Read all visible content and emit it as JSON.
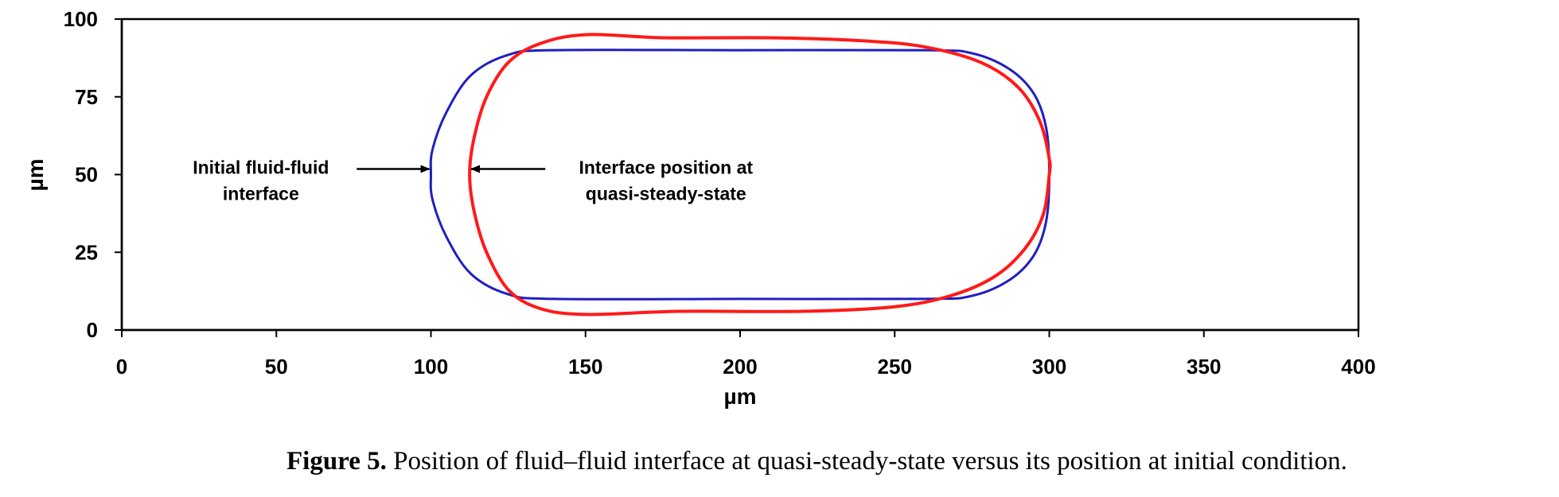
{
  "caption": {
    "label": "Figure 5.",
    "text": " Position of fluid–fluid interface at quasi-steady-state versus its position at initial condition."
  },
  "chart_data": {
    "type": "line",
    "xlabel": "µm",
    "ylabel": "µm",
    "xlim": [
      0,
      400
    ],
    "ylim": [
      0,
      100
    ],
    "xticks": [
      "0",
      "50",
      "100",
      "150",
      "200",
      "250",
      "300",
      "350",
      "400"
    ],
    "yticks": [
      "0",
      "25",
      "50",
      "75",
      "100"
    ],
    "grid": false,
    "series": [
      {
        "color": "#1f1fbf",
        "points": [
          [
            140,
            90
          ],
          [
            200,
            90
          ],
          [
            260,
            90
          ],
          [
            275,
            89
          ],
          [
            287,
            84
          ],
          [
            295,
            76
          ],
          [
            299,
            65
          ],
          [
            300,
            50
          ],
          [
            299,
            35
          ],
          [
            295,
            24
          ],
          [
            287,
            16
          ],
          [
            275,
            11
          ],
          [
            260,
            10
          ],
          [
            200,
            10
          ],
          [
            140,
            10
          ],
          [
            125,
            11.5
          ],
          [
            113,
            18
          ],
          [
            105,
            30
          ],
          [
            100.5,
            42
          ],
          [
            100,
            50
          ],
          [
            100.5,
            58
          ],
          [
            105,
            70
          ],
          [
            113,
            82
          ],
          [
            125,
            88.5
          ],
          [
            140,
            90
          ]
        ]
      },
      {
        "color": "#ff1a1a",
        "points": [
          [
            150,
            95
          ],
          [
            175,
            94
          ],
          [
            210,
            94
          ],
          [
            240,
            93
          ],
          [
            260,
            91
          ],
          [
            278,
            86
          ],
          [
            290,
            78
          ],
          [
            297,
            67
          ],
          [
            300,
            55
          ],
          [
            300,
            50
          ],
          [
            298,
            37
          ],
          [
            292,
            26
          ],
          [
            282,
            17
          ],
          [
            268,
            11
          ],
          [
            250,
            7.5
          ],
          [
            220,
            6
          ],
          [
            180,
            6
          ],
          [
            150,
            5
          ],
          [
            135,
            7
          ],
          [
            125,
            13
          ],
          [
            118,
            25
          ],
          [
            114,
            38
          ],
          [
            112.5,
            50
          ],
          [
            114,
            62
          ],
          [
            118,
            75
          ],
          [
            125,
            86
          ],
          [
            135,
            92
          ],
          [
            150,
            95
          ]
        ]
      }
    ],
    "annotations": [
      {
        "lines": [
          "Initial fluid-fluid",
          "interface"
        ],
        "x": 45,
        "y": 50,
        "arrow_to": [
          99.5,
          50
        ],
        "arrow_from": [
          76,
          50
        ]
      },
      {
        "lines": [
          "Interface position at",
          "quasi-steady-state"
        ],
        "x": 176,
        "y": 50,
        "arrow_to": [
          113,
          50
        ],
        "arrow_from": [
          137,
          50
        ]
      }
    ]
  }
}
